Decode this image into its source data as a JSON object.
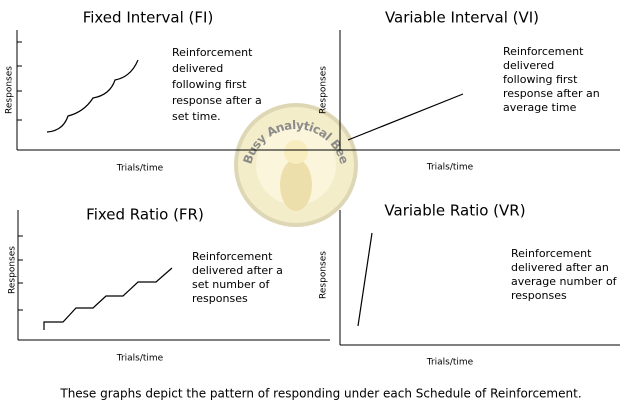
{
  "panels": [
    {
      "title": "Fixed Interval (FI)",
      "description": [
        "Reinforcement",
        "delivered",
        "following first",
        "response after a",
        "set time."
      ],
      "y_label": "Responses",
      "x_label": "Trials/time"
    },
    {
      "title": "Variable Interval (VI)",
      "description": [
        "Reinforcement",
        "delivered",
        "following first",
        "response after an",
        "average time"
      ],
      "y_label": "Responses",
      "x_label": "Trials/time"
    },
    {
      "title": "Fixed Ratio (FR)",
      "description": [
        "Reinforcement",
        "delivered after a",
        "set number of",
        "responses"
      ],
      "y_label": "Responses",
      "x_label": "Trials/time"
    },
    {
      "title": "Variable Ratio (VR)",
      "description": [
        "Reinforcement",
        "delivered after an",
        "average number of",
        "responses"
      ],
      "y_label": "Responses",
      "x_label": "Trials/time"
    }
  ],
  "watermark": "Busy Analytical Bee",
  "caption": "These graphs depict the pattern of responding under each Schedule of Reinforcement."
}
